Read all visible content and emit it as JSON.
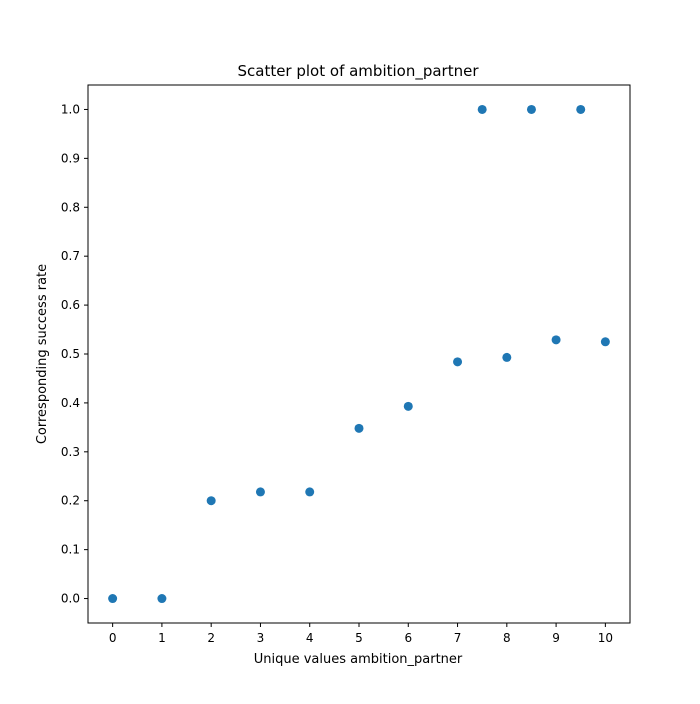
{
  "chart_data": {
    "type": "scatter",
    "title": "Scatter plot of ambition_partner",
    "xlabel": "Unique values ambition_partner",
    "ylabel": "Corresponding success rate",
    "xlim": [
      -0.5,
      10.5
    ],
    "ylim": [
      -0.05,
      1.05
    ],
    "xticks": [
      0,
      1,
      2,
      3,
      4,
      5,
      6,
      7,
      8,
      9,
      10
    ],
    "xtick_labels": [
      "0",
      "1",
      "2",
      "3",
      "4",
      "5",
      "6",
      "7",
      "8",
      "9",
      "10"
    ],
    "yticks": [
      0.0,
      0.1,
      0.2,
      0.3,
      0.4,
      0.5,
      0.6,
      0.7,
      0.8,
      0.9,
      1.0
    ],
    "ytick_labels": [
      "0.0",
      "0.1",
      "0.2",
      "0.3",
      "0.4",
      "0.5",
      "0.6",
      "0.7",
      "0.8",
      "0.9",
      "1.0"
    ],
    "grid": false,
    "marker_color": "#1f77b4",
    "points": [
      {
        "x": 0,
        "y": 0.0
      },
      {
        "x": 1,
        "y": 0.0
      },
      {
        "x": 2,
        "y": 0.2
      },
      {
        "x": 3,
        "y": 0.218
      },
      {
        "x": 4,
        "y": 0.218
      },
      {
        "x": 5,
        "y": 0.348
      },
      {
        "x": 6,
        "y": 0.393
      },
      {
        "x": 7,
        "y": 0.484
      },
      {
        "x": 7.5,
        "y": 1.0
      },
      {
        "x": 8,
        "y": 0.493
      },
      {
        "x": 8.5,
        "y": 1.0
      },
      {
        "x": 9,
        "y": 0.529
      },
      {
        "x": 9.5,
        "y": 1.0
      },
      {
        "x": 10,
        "y": 0.525
      }
    ]
  }
}
